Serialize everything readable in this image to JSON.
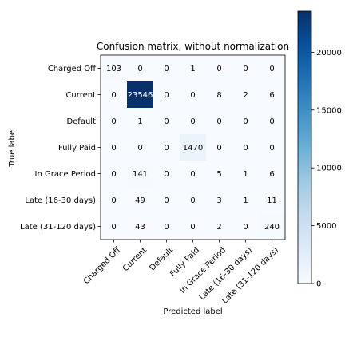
{
  "chart_data": {
    "type": "heatmap",
    "title": "Confusion matrix, without normalization",
    "xlabel": "Predicted label",
    "ylabel": "True label",
    "categories": [
      "Charged Off",
      "Current",
      "Default",
      "Fully Paid",
      "In Grace Period",
      "Late (16-30 days)",
      "Late (31-120 days)"
    ],
    "matrix": [
      [
        103,
        0,
        0,
        1,
        0,
        0,
        0
      ],
      [
        0,
        23546,
        0,
        0,
        8,
        2,
        6
      ],
      [
        0,
        1,
        0,
        0,
        0,
        0,
        0
      ],
      [
        0,
        0,
        0,
        1470,
        0,
        0,
        0
      ],
      [
        0,
        141,
        0,
        0,
        5,
        1,
        6
      ],
      [
        0,
        49,
        0,
        0,
        3,
        1,
        11
      ],
      [
        0,
        43,
        0,
        0,
        2,
        0,
        240
      ]
    ],
    "colorbar": {
      "min": 0,
      "max": 23546,
      "ticks": [
        0,
        5000,
        10000,
        15000,
        20000
      ]
    },
    "colormap": "Blues",
    "grid": false
  }
}
